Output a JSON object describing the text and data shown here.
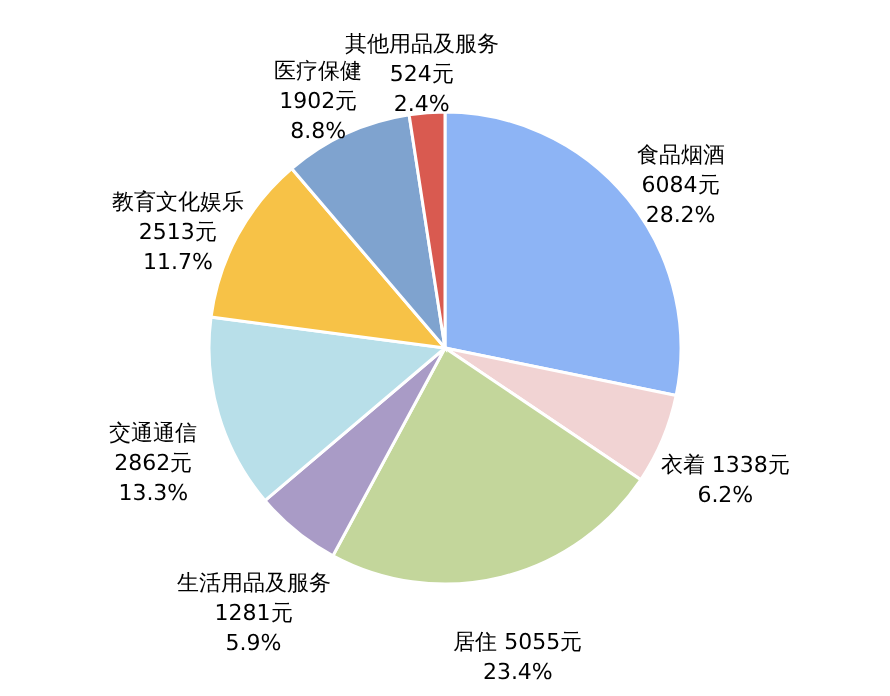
{
  "chart_data": {
    "type": "pie",
    "categories": [
      "食品烟酒",
      "衣着",
      "居住",
      "生活用品及服务",
      "交通通信",
      "教育文化娱乐",
      "医疗保健",
      "其他用品及服务"
    ],
    "values": [
      6084,
      1338,
      5055,
      1281,
      2862,
      2513,
      1902,
      524
    ],
    "colors": [
      "#8db4f5",
      "#f1d3d3",
      "#c3d69b",
      "#a99bc6",
      "#b8dfe9",
      "#f7c247",
      "#7fa3cf",
      "#d95a50"
    ],
    "value_labels": [
      "6084元\n28.2%",
      "1338元\n6.2%",
      "5055元\n23.4%",
      "1281元\n5.9%",
      "2862元\n13.3%",
      "2513元\n11.7%",
      "1902元\n8.8%",
      "524元\n2.4%"
    ]
  }
}
